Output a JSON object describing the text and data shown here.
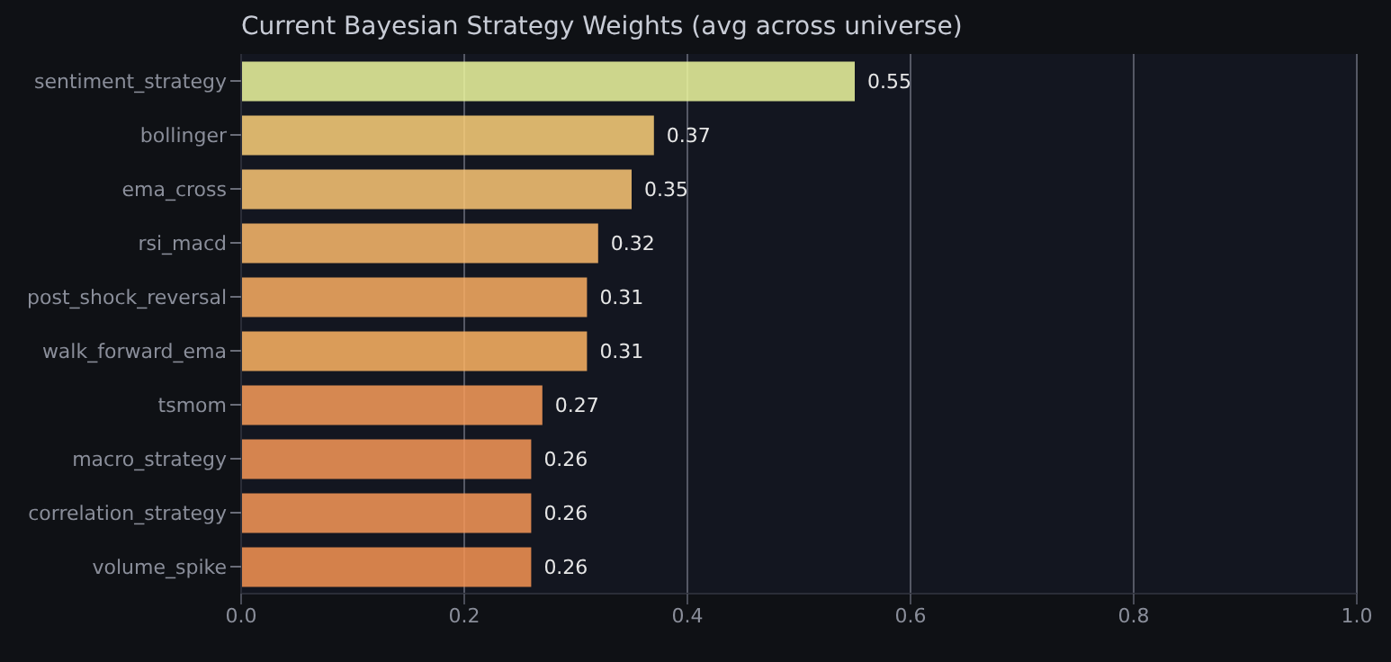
{
  "chart_data": {
    "type": "bar",
    "orientation": "horizontal",
    "title": "Current Bayesian Strategy Weights (avg across universe)",
    "categories": [
      "sentiment_strategy",
      "bollinger",
      "ema_cross",
      "rsi_macd",
      "post_shock_reversal",
      "walk_forward_ema",
      "tsmom",
      "macro_strategy",
      "correlation_strategy",
      "volume_spike"
    ],
    "values": [
      0.55,
      0.37,
      0.35,
      0.32,
      0.31,
      0.31,
      0.27,
      0.26,
      0.26,
      0.26
    ],
    "colors": [
      "#eef8a0",
      "#fdd07a",
      "#fdc776",
      "#fdba6c",
      "#fcae63",
      "#feb464",
      "#f99c5a",
      "#f89858",
      "#f89858",
      "#f79453"
    ],
    "xlim": [
      0,
      1
    ],
    "xticks": [
      {
        "value": 0,
        "label": "0.0"
      },
      {
        "value": 0.2,
        "label": "0.2"
      },
      {
        "value": 0.4,
        "label": "0.4"
      },
      {
        "value": 0.6,
        "label": "0.6"
      },
      {
        "value": 0.8,
        "label": "0.8"
      },
      {
        "value": 1,
        "label": "1.0"
      }
    ],
    "grid": "x",
    "data_labels": true
  }
}
